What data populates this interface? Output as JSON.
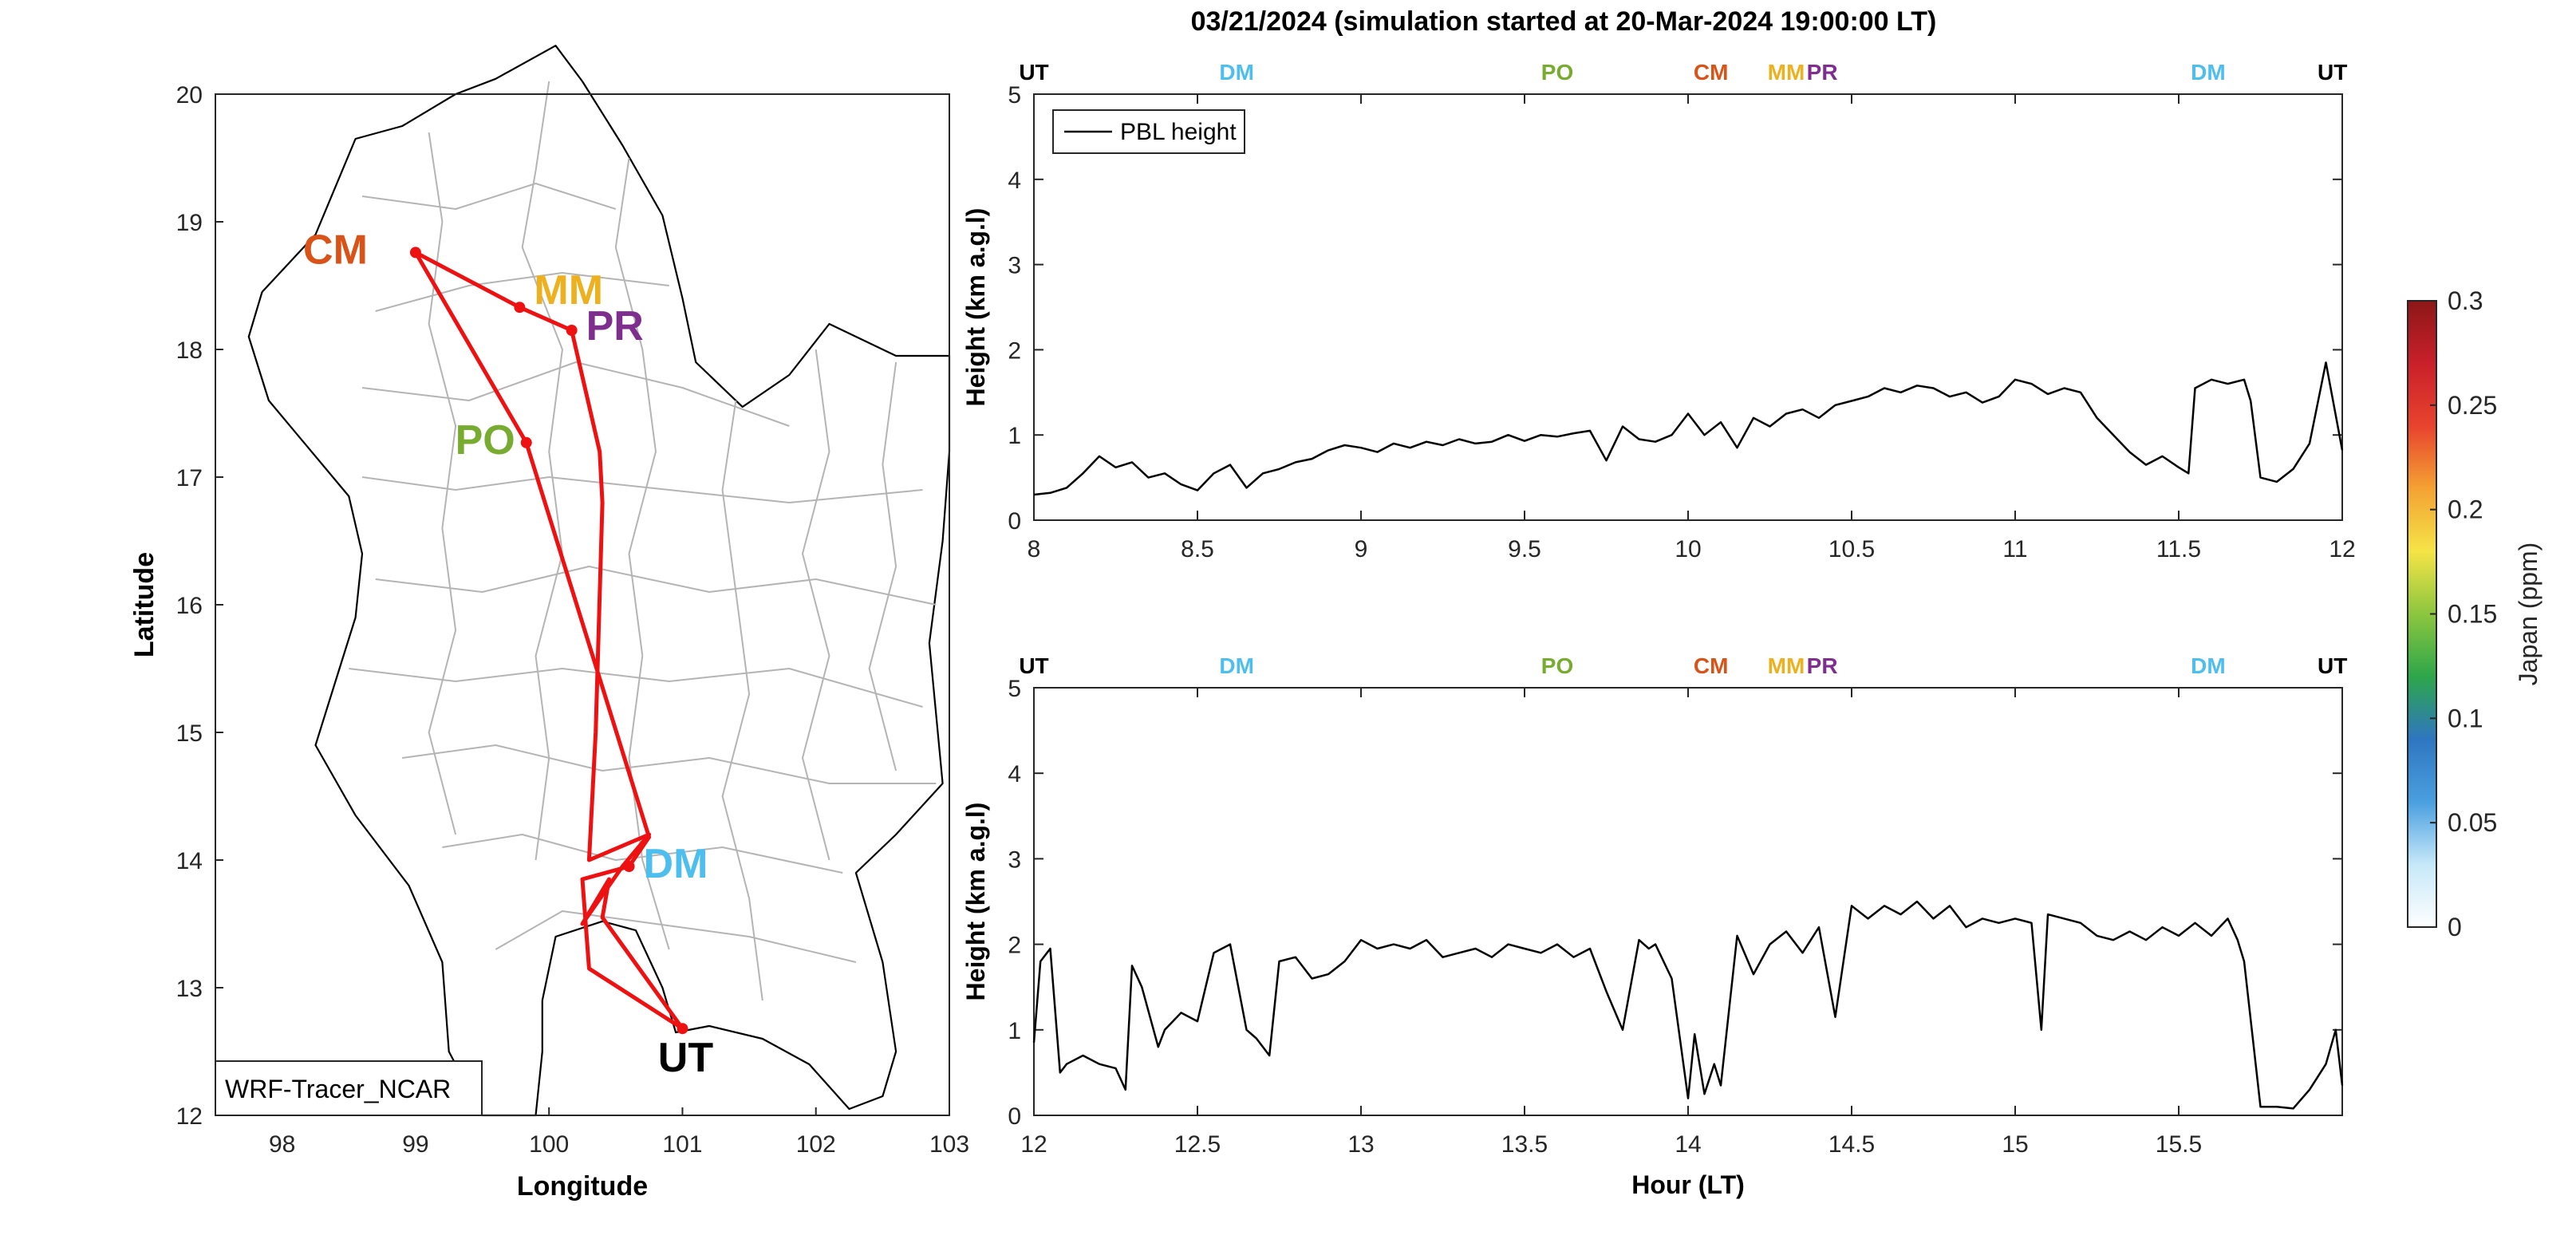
{
  "figure": {
    "title": "03/21/2024 (simulation started at 20-Mar-2024 19:00:00 LT)"
  },
  "colors": {
    "route": "#ee1111",
    "axis": "#262626",
    "border": "#000000",
    "province": "#b4b4b4",
    "pbl": "#000000",
    "UT": "#000000",
    "DM": "#4dbeee",
    "PO": "#77ac30",
    "CM": "#d95319",
    "MM": "#edb120",
    "PR": "#7e2f8e"
  },
  "chart_data": [
    {
      "type": "map",
      "name": "route-map",
      "xlabel": "Longitude",
      "ylabel": "Latitude",
      "xlim": [
        97.5,
        103
      ],
      "ylim": [
        12,
        20
      ],
      "xticks": [
        98,
        99,
        100,
        101,
        102,
        103
      ],
      "yticks": [
        12,
        13,
        14,
        15,
        16,
        17,
        18,
        19,
        20
      ],
      "annotation_box": "WRF-Tracer_NCAR",
      "stations": [
        {
          "code": "CM",
          "lon": 99.0,
          "lat": 18.76
        },
        {
          "code": "MM",
          "lon": 99.78,
          "lat": 18.33
        },
        {
          "code": "PR",
          "lon": 100.17,
          "lat": 18.15
        },
        {
          "code": "PO",
          "lon": 99.83,
          "lat": 17.27
        },
        {
          "code": "DM",
          "lon": 100.6,
          "lat": 13.95
        },
        {
          "code": "UT",
          "lon": 101.0,
          "lat": 12.68
        }
      ],
      "route": [
        [
          101.0,
          12.68
        ],
        [
          100.3,
          13.15
        ],
        [
          100.25,
          13.85
        ],
        [
          100.6,
          13.95
        ],
        [
          100.75,
          14.18
        ],
        [
          99.83,
          17.27
        ],
        [
          99.0,
          18.76
        ],
        [
          99.78,
          18.33
        ],
        [
          100.17,
          18.15
        ],
        [
          100.38,
          17.2
        ],
        [
          100.4,
          16.8
        ],
        [
          100.35,
          15.0
        ],
        [
          100.3,
          14.0
        ],
        [
          100.75,
          14.2
        ],
        [
          100.55,
          13.95
        ],
        [
          100.25,
          13.5
        ],
        [
          100.45,
          13.85
        ],
        [
          100.4,
          13.55
        ],
        [
          101.0,
          12.68
        ]
      ]
    },
    {
      "type": "line",
      "name": "pbl-top",
      "xlabel": "",
      "ylabel": "Height (km a.g.l)",
      "xlim": [
        8,
        12
      ],
      "ylim": [
        0,
        5
      ],
      "xticks": [
        8,
        8.5,
        9,
        9.5,
        10,
        10.5,
        11,
        11.5,
        12
      ],
      "xticklabels": [
        "8",
        "8.5",
        "9",
        "9.5",
        "10",
        "10.5",
        "11",
        "11.5",
        "12"
      ],
      "yticks": [
        0,
        1,
        2,
        3,
        4,
        5
      ],
      "legend": {
        "location": "top-left",
        "entries": [
          "PBL height"
        ]
      },
      "station_markers": [
        {
          "code": "UT",
          "x": 8.0
        },
        {
          "code": "DM",
          "x": 8.62
        },
        {
          "code": "PO",
          "x": 9.6
        },
        {
          "code": "CM",
          "x": 10.07
        },
        {
          "code": "MM",
          "x": 10.3
        },
        {
          "code": "PR",
          "x": 10.41
        },
        {
          "code": "DM",
          "x": 11.59
        },
        {
          "code": "UT",
          "x": 11.97
        }
      ],
      "series": [
        {
          "name": "PBL height",
          "x": [
            8.0,
            8.05,
            8.1,
            8.15,
            8.2,
            8.25,
            8.3,
            8.35,
            8.4,
            8.45,
            8.5,
            8.55,
            8.6,
            8.65,
            8.7,
            8.75,
            8.8,
            8.85,
            8.9,
            8.95,
            9.0,
            9.05,
            9.1,
            9.15,
            9.2,
            9.25,
            9.3,
            9.35,
            9.4,
            9.45,
            9.5,
            9.55,
            9.6,
            9.65,
            9.7,
            9.75,
            9.8,
            9.85,
            9.9,
            9.95,
            10.0,
            10.05,
            10.1,
            10.15,
            10.2,
            10.25,
            10.3,
            10.35,
            10.4,
            10.45,
            10.5,
            10.55,
            10.6,
            10.65,
            10.7,
            10.75,
            10.8,
            10.85,
            10.9,
            10.95,
            11.0,
            11.05,
            11.1,
            11.15,
            11.2,
            11.25,
            11.3,
            11.35,
            11.4,
            11.45,
            11.5,
            11.53,
            11.55,
            11.6,
            11.65,
            11.7,
            11.72,
            11.75,
            11.8,
            11.85,
            11.9,
            11.95,
            12.0
          ],
          "values": [
            0.3,
            0.32,
            0.38,
            0.55,
            0.75,
            0.62,
            0.68,
            0.5,
            0.55,
            0.42,
            0.35,
            0.55,
            0.65,
            0.38,
            0.55,
            0.6,
            0.68,
            0.72,
            0.82,
            0.88,
            0.85,
            0.8,
            0.9,
            0.85,
            0.92,
            0.88,
            0.95,
            0.9,
            0.92,
            1.0,
            0.93,
            1.0,
            0.98,
            1.02,
            1.05,
            0.7,
            1.1,
            0.95,
            0.92,
            1.0,
            1.25,
            1.0,
            1.15,
            0.85,
            1.2,
            1.1,
            1.25,
            1.3,
            1.2,
            1.35,
            1.4,
            1.45,
            1.55,
            1.5,
            1.58,
            1.55,
            1.45,
            1.5,
            1.38,
            1.45,
            1.65,
            1.6,
            1.48,
            1.55,
            1.5,
            1.2,
            1.0,
            0.8,
            0.65,
            0.75,
            0.62,
            0.55,
            1.55,
            1.65,
            1.6,
            1.65,
            1.4,
            0.5,
            0.45,
            0.6,
            0.9,
            1.85,
            0.82
          ]
        }
      ]
    },
    {
      "type": "line",
      "name": "pbl-bottom",
      "xlabel": "Hour (LT)",
      "ylabel": "Height (km a.g.l)",
      "xlim": [
        12,
        16
      ],
      "ylim": [
        0,
        5
      ],
      "xticks": [
        12,
        12.5,
        13,
        13.5,
        14,
        14.5,
        15,
        15.5
      ],
      "xticklabels": [
        "12",
        "12.5",
        "13",
        "13.5",
        "14",
        "14.5",
        "15",
        "15.5"
      ],
      "yticks": [
        0,
        1,
        2,
        3,
        4,
        5
      ],
      "station_markers": [
        {
          "code": "UT",
          "x": 12.0
        },
        {
          "code": "DM",
          "x": 12.62
        },
        {
          "code": "PO",
          "x": 13.6
        },
        {
          "code": "CM",
          "x": 14.07
        },
        {
          "code": "MM",
          "x": 14.3
        },
        {
          "code": "PR",
          "x": 14.41
        },
        {
          "code": "DM",
          "x": 15.59
        },
        {
          "code": "UT",
          "x": 15.97
        }
      ],
      "series": [
        {
          "name": "PBL height",
          "x": [
            12.0,
            12.02,
            12.05,
            12.08,
            12.1,
            12.15,
            12.2,
            12.25,
            12.28,
            12.3,
            12.33,
            12.38,
            12.4,
            12.45,
            12.5,
            12.55,
            12.6,
            12.65,
            12.68,
            12.72,
            12.75,
            12.8,
            12.85,
            12.9,
            12.95,
            13.0,
            13.05,
            13.1,
            13.15,
            13.2,
            13.25,
            13.3,
            13.35,
            13.4,
            13.45,
            13.5,
            13.55,
            13.6,
            13.65,
            13.7,
            13.75,
            13.8,
            13.85,
            13.88,
            13.9,
            13.95,
            14.0,
            14.02,
            14.05,
            14.08,
            14.1,
            14.15,
            14.2,
            14.25,
            14.3,
            14.35,
            14.4,
            14.45,
            14.5,
            14.55,
            14.6,
            14.65,
            14.7,
            14.75,
            14.8,
            14.85,
            14.9,
            14.95,
            15.0,
            15.05,
            15.08,
            15.1,
            15.15,
            15.2,
            15.25,
            15.3,
            15.35,
            15.4,
            15.45,
            15.5,
            15.55,
            15.6,
            15.65,
            15.68,
            15.7,
            15.75,
            15.8,
            15.85,
            15.9,
            15.95,
            15.98,
            16.0
          ],
          "values": [
            0.85,
            1.8,
            1.95,
            0.5,
            0.6,
            0.7,
            0.6,
            0.55,
            0.3,
            1.75,
            1.5,
            0.8,
            1.0,
            1.2,
            1.1,
            1.9,
            2.0,
            1.0,
            0.9,
            0.7,
            1.8,
            1.85,
            1.6,
            1.65,
            1.8,
            2.05,
            1.95,
            2.0,
            1.95,
            2.05,
            1.85,
            1.9,
            1.95,
            1.85,
            2.0,
            1.95,
            1.9,
            2.0,
            1.85,
            1.95,
            1.45,
            1.0,
            2.05,
            1.95,
            2.0,
            1.6,
            0.2,
            0.95,
            0.25,
            0.6,
            0.35,
            2.1,
            1.65,
            2.0,
            2.15,
            1.9,
            2.2,
            1.15,
            2.45,
            2.3,
            2.45,
            2.35,
            2.5,
            2.3,
            2.45,
            2.2,
            2.3,
            2.25,
            2.3,
            2.25,
            1.0,
            2.35,
            2.3,
            2.25,
            2.1,
            2.05,
            2.15,
            2.05,
            2.2,
            2.1,
            2.25,
            2.1,
            2.3,
            2.05,
            1.8,
            0.1,
            0.1,
            0.08,
            0.3,
            0.6,
            1.0,
            0.35
          ]
        }
      ]
    },
    {
      "type": "colorbar",
      "name": "colorbar",
      "label": "Japan (ppm)",
      "range": [
        0,
        0.3
      ],
      "ticks": [
        0,
        0.05,
        0.1,
        0.15,
        0.2,
        0.25,
        0.3
      ],
      "ticklabels": [
        "0",
        "0.05",
        "0.1",
        "0.15",
        "0.2",
        "0.25",
        "0.3"
      ],
      "colors": [
        "#ffffff",
        "#c6e8f8",
        "#4a9fe0",
        "#2f76c0",
        "#2ea64a",
        "#8cc63f",
        "#f5e447",
        "#f4a233",
        "#e8432e",
        "#c9202a",
        "#8c1717"
      ]
    }
  ]
}
